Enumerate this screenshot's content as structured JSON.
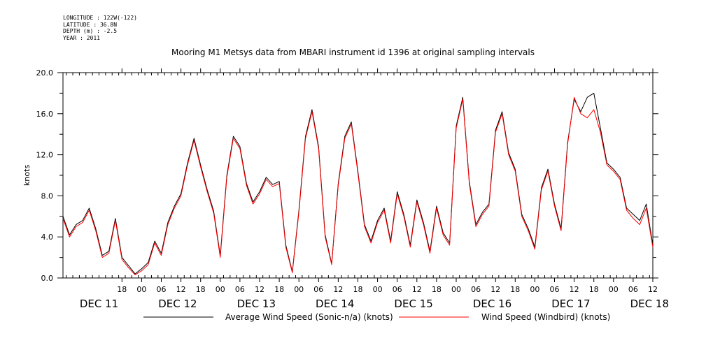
{
  "header": {
    "meta_lines": [
      "LONGITUDE : 122W(-122)",
      "LATITUDE : 36.8N",
      "DEPTH (m) : -2.5",
      "YEAR : 2011"
    ],
    "title": "Mooring M1 Metsys data from MBARI instrument id 1396 at original sampling intervals"
  },
  "chart_data": {
    "type": "line",
    "title": "Mooring M1 Metsys data from MBARI instrument id 1396 at original sampling intervals",
    "xlabel": "",
    "ylabel": "knots",
    "ylim": [
      0,
      20
    ],
    "yticks": [
      "0.0",
      "4.0",
      "8.0",
      "12.0",
      "16.0",
      "20.0"
    ],
    "xlim_hours": [
      -11,
      169
    ],
    "hour_ticks": [
      {
        "h": 7,
        "label": "18"
      },
      {
        "h": 13,
        "label": "00"
      },
      {
        "h": 19,
        "label": "06"
      },
      {
        "h": 25,
        "label": "12"
      },
      {
        "h": 31,
        "label": "18"
      },
      {
        "h": 37,
        "label": "00"
      },
      {
        "h": 43,
        "label": "06"
      },
      {
        "h": 49,
        "label": "12"
      },
      {
        "h": 55,
        "label": "18"
      },
      {
        "h": 61,
        "label": "00"
      },
      {
        "h": 67,
        "label": "06"
      },
      {
        "h": 73,
        "label": "12"
      },
      {
        "h": 79,
        "label": "18"
      },
      {
        "h": 85,
        "label": "00"
      },
      {
        "h": 91,
        "label": "06"
      },
      {
        "h": 97,
        "label": "12"
      },
      {
        "h": 103,
        "label": "18"
      },
      {
        "h": 109,
        "label": "00"
      },
      {
        "h": 115,
        "label": "06"
      },
      {
        "h": 121,
        "label": "12"
      },
      {
        "h": 127,
        "label": "18"
      },
      {
        "h": 133,
        "label": "00"
      },
      {
        "h": 139,
        "label": "06"
      },
      {
        "h": 145,
        "label": "12"
      },
      {
        "h": 151,
        "label": "18"
      },
      {
        "h": 157,
        "label": "00"
      },
      {
        "h": 163,
        "label": "06"
      },
      {
        "h": 169,
        "label": "12"
      }
    ],
    "day_labels": [
      {
        "h": 0,
        "label": "DEC 11"
      },
      {
        "h": 24,
        "label": "DEC 12"
      },
      {
        "h": 48,
        "label": "DEC 13"
      },
      {
        "h": 72,
        "label": "DEC 14"
      },
      {
        "h": 96,
        "label": "DEC 15"
      },
      {
        "h": 120,
        "label": "DEC 16"
      },
      {
        "h": 144,
        "label": "DEC 17"
      },
      {
        "h": 168,
        "label": "DEC 18"
      }
    ],
    "x_key": "hours from DEC 11 00:00 (approx. 2-hour samples)",
    "series": [
      {
        "name": "Average Wind Speed (Sonic-n/a) (knots)",
        "color": "#000000",
        "x": [
          -11,
          -9,
          -7,
          -5,
          -3,
          -1,
          1,
          3,
          5,
          7,
          9,
          11,
          13,
          15,
          17,
          19,
          21,
          23,
          25,
          27,
          29,
          31,
          33,
          35,
          37,
          39,
          41,
          43,
          45,
          47,
          49,
          51,
          53,
          55,
          57,
          59,
          61,
          63,
          65,
          67,
          69,
          71,
          73,
          75,
          77,
          79,
          81,
          83,
          85,
          87,
          89,
          91,
          93,
          95,
          97,
          99,
          101,
          103,
          105,
          107,
          109,
          111,
          113,
          115,
          117,
          119,
          121,
          123,
          125,
          127,
          129,
          131,
          133,
          135,
          137,
          139,
          141,
          143,
          145,
          147,
          149,
          151,
          153,
          155,
          157,
          159,
          161,
          163,
          165,
          167,
          169
        ],
        "values": [
          6.0,
          4.2,
          5.2,
          5.6,
          6.8,
          4.8,
          2.2,
          2.6,
          5.8,
          2.0,
          1.2,
          0.4,
          0.9,
          1.5,
          3.6,
          2.4,
          5.4,
          7.0,
          8.2,
          11.2,
          13.6,
          11.0,
          8.6,
          6.5,
          2.2,
          10.0,
          13.8,
          12.8,
          9.2,
          7.4,
          8.4,
          9.8,
          9.1,
          9.4,
          3.2,
          0.6,
          6.6,
          13.8,
          16.4,
          12.8,
          4.2,
          1.4,
          9.2,
          13.8,
          15.2,
          10.4,
          5.2,
          3.6,
          5.6,
          6.8,
          3.6,
          8.4,
          6.2,
          3.2,
          7.6,
          5.4,
          2.6,
          7.0,
          4.4,
          3.4,
          14.8,
          17.6,
          9.4,
          5.2,
          6.4,
          7.2,
          14.4,
          16.2,
          12.2,
          10.6,
          6.2,
          4.8,
          3.0,
          8.8,
          10.6,
          7.2,
          4.8,
          13.2,
          17.4,
          16.2,
          17.6,
          18.0,
          14.6,
          11.2,
          10.6,
          9.8,
          6.8,
          6.2,
          5.6,
          7.2,
          3.2
        ]
      },
      {
        "name": "Wind Speed (Windbird) (knots)",
        "color": "#ff0000",
        "x": [
          -11,
          -9,
          -7,
          -5,
          -3,
          -1,
          1,
          3,
          5,
          7,
          9,
          11,
          13,
          15,
          17,
          19,
          21,
          23,
          25,
          27,
          29,
          31,
          33,
          35,
          37,
          39,
          41,
          43,
          45,
          47,
          49,
          51,
          53,
          55,
          57,
          59,
          61,
          63,
          65,
          67,
          69,
          71,
          73,
          75,
          77,
          79,
          81,
          83,
          85,
          87,
          89,
          91,
          93,
          95,
          97,
          99,
          101,
          103,
          105,
          107,
          109,
          111,
          113,
          115,
          117,
          119,
          121,
          123,
          125,
          127,
          129,
          131,
          133,
          135,
          137,
          139,
          141,
          143,
          145,
          147,
          149,
          151,
          153,
          155,
          157,
          159,
          161,
          163,
          165,
          167,
          169
        ],
        "values": [
          5.8,
          4.0,
          5.0,
          5.4,
          6.6,
          4.6,
          2.0,
          2.4,
          5.6,
          1.8,
          1.0,
          0.3,
          0.7,
          1.3,
          3.4,
          2.2,
          5.2,
          6.8,
          8.0,
          11.0,
          13.4,
          10.8,
          8.4,
          6.3,
          2.0,
          9.8,
          13.6,
          12.6,
          9.0,
          7.2,
          8.2,
          9.6,
          8.9,
          9.2,
          3.0,
          0.5,
          6.4,
          13.6,
          16.2,
          12.6,
          4.0,
          1.3,
          9.0,
          13.6,
          15.0,
          10.2,
          5.0,
          3.4,
          5.4,
          6.6,
          3.4,
          8.2,
          6.0,
          3.0,
          7.4,
          5.2,
          2.4,
          6.8,
          4.2,
          3.2,
          14.6,
          17.4,
          9.2,
          5.0,
          6.2,
          7.0,
          14.2,
          16.0,
          12.0,
          10.4,
          6.0,
          4.6,
          2.8,
          8.6,
          10.4,
          7.0,
          4.6,
          13.0,
          17.6,
          16.0,
          15.6,
          16.4,
          14.2,
          11.0,
          10.4,
          9.6,
          6.6,
          5.8,
          5.2,
          6.8,
          3.0
        ]
      }
    ],
    "legend": [
      {
        "label": "Average Wind Speed (Sonic-n/a) (knots)",
        "color": "#000000"
      },
      {
        "label": "Wind Speed (Windbird) (knots)",
        "color": "#ff0000"
      }
    ],
    "legend_position": "bottom",
    "grid": false
  }
}
